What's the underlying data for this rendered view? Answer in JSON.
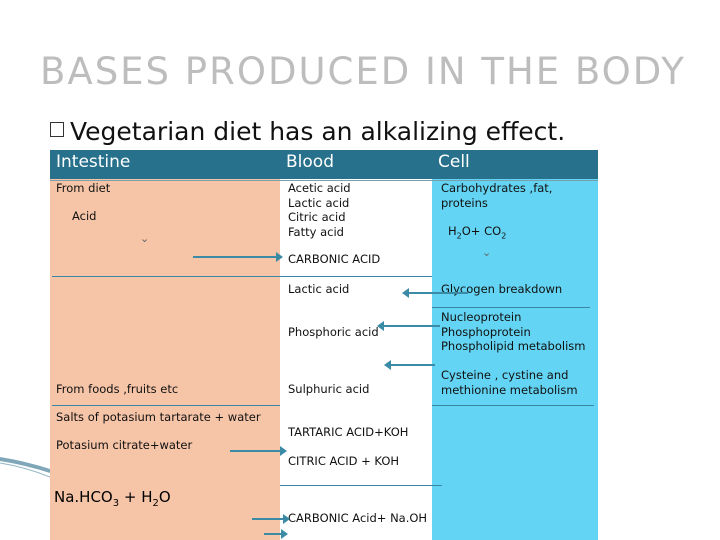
{
  "title": "BASES PRODUCED IN THE BODY",
  "bullet": "Vegetarian diet has an alkalizing effect.",
  "headers": {
    "intestine": "Intestine",
    "blood": "Blood",
    "cell": "Cell"
  },
  "intestine": {
    "from_diet": "From diet",
    "acid": "Acid",
    "from_foods": "From foods ,fruits etc",
    "salts": "Salts of potasium tartarate + water",
    "citrate": "Potasium citrate+water",
    "nahco3_pre": "Na.HCO",
    "nahco3_sub": "3",
    "nahco3_mid": " + H",
    "nahco3_sub2": "2",
    "nahco3_post": "O"
  },
  "blood": {
    "acids": [
      "Acetic acid",
      "Lactic acid",
      "Citric acid",
      "Fatty acid"
    ],
    "carbonic": "CARBONIC ACID",
    "lactic": "Lactic acid",
    "phosphoric": "Phosphoric acid",
    "sulphuric": "Sulphuric acid",
    "tartaric": "TARTARIC ACID+KOH",
    "citric_koh": "CITRIC ACID + KOH",
    "carbonic_naoh": "CARBONIC Acid+ Na.OH"
  },
  "cell": {
    "carbs1": "Carbohydrates ,fat,",
    "carbs2": "proteins",
    "h2o_pre": "H",
    "h2o_sub": "2",
    "h2o_mid": "O+ CO",
    "h2o_sub2": "2",
    "glycogen": "Glycogen breakdown",
    "nucleo": [
      "Nucleoprotein",
      "Phosphoprotein",
      "Phospholipid metabolism"
    ],
    "cysteine": [
      "Cysteine , cystine and",
      "methionine metabolism"
    ]
  },
  "icons": {
    "bullet": "square-bullet-icon",
    "chevron": "chevron-down-icon"
  }
}
